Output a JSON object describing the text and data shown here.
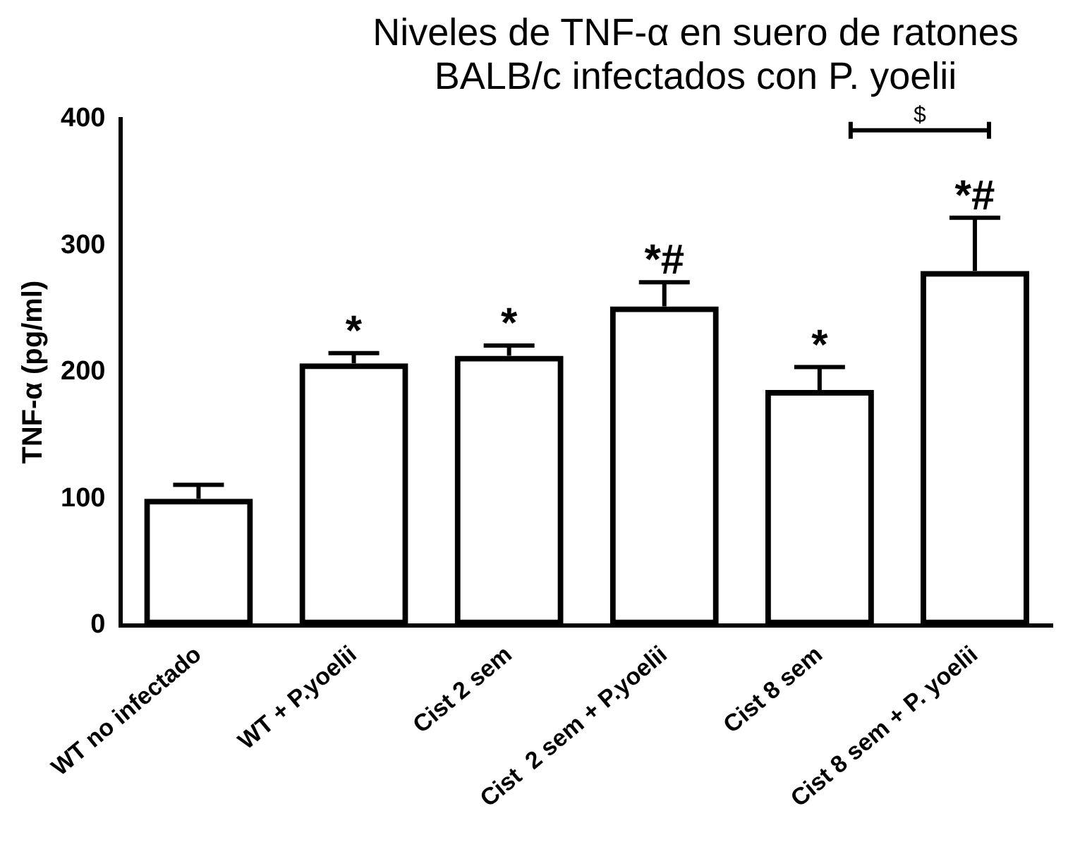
{
  "chart_data": {
    "type": "bar",
    "title": "Niveles de TNF-α en suero  de ratones BALB/c infectados con P. yoelii",
    "ylabel": "TNF-α (pg/ml)",
    "categories": [
      "WT no infectado",
      "WT + P.yoelii",
      "Cist 2 sem",
      "Cist  2 sem + P.yoelii",
      "Cist 8 sem",
      "Cist 8 sem + P. yoelii"
    ],
    "values": [
      100,
      207,
      213,
      252,
      186,
      280
    ],
    "errors": [
      11,
      8,
      8,
      19,
      18,
      42
    ],
    "color": "#000000",
    "ylim": [
      0,
      400
    ],
    "yticks": [
      0,
      100,
      200,
      300,
      400
    ],
    "grid": false,
    "legend": false,
    "annotations": [
      {
        "text": "*",
        "x": "WT + P.yoelii",
        "y": 215
      },
      {
        "text": "*",
        "x": "Cist 2 sem",
        "y": 221
      },
      {
        "text": "*#",
        "x": "Cist  2 sem + P.yoelii",
        "y": 271
      },
      {
        "text": "*",
        "x": "Cist 8 sem",
        "y": 204
      },
      {
        "text": "*#",
        "x": "Cist 8 sem + P. yoelii",
        "y": 322
      },
      "$"
    ]
  }
}
